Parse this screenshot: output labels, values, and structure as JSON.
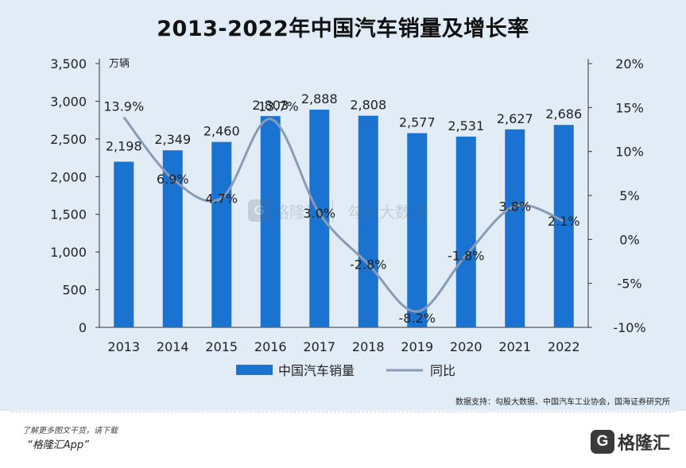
{
  "chart_data": {
    "type": "bar",
    "title": "2013-2022年中国汽车销量及增长率",
    "categories": [
      "2013",
      "2014",
      "2015",
      "2016",
      "2017",
      "2018",
      "2019",
      "2020",
      "2021",
      "2022"
    ],
    "series": [
      {
        "name": "中国汽车销量",
        "type": "bar",
        "axis": "left",
        "color": "#1a73d1",
        "values": [
          2198,
          2349,
          2460,
          2803,
          2888,
          2808,
          2577,
          2531,
          2627,
          2686
        ],
        "labels": [
          "2,198",
          "2,349",
          "2,460",
          "2,803",
          "2,888",
          "2,808",
          "2,577",
          "2,531",
          "2,627",
          "2,686"
        ]
      },
      {
        "name": "同比",
        "type": "line",
        "axis": "right",
        "color": "#8a9bb5",
        "values": [
          13.9,
          6.9,
          4.7,
          13.7,
          3.0,
          -2.8,
          -8.2,
          -1.8,
          3.8,
          2.1
        ],
        "labels": [
          "13.9%",
          "6.9%",
          "4.7%",
          "13.7%",
          "3.0%",
          "-2.8%",
          "-8.2%",
          "-1.8%",
          "3.8%",
          "2.1%"
        ]
      }
    ],
    "y_left": {
      "unit": "万辆",
      "ylim": [
        0,
        3500
      ],
      "ticks": [
        0,
        500,
        1000,
        1500,
        2000,
        2500,
        3000,
        3500
      ],
      "tick_labels": [
        "0",
        "500",
        "1,000",
        "1,500",
        "2,000",
        "2,500",
        "3,000",
        "3,500"
      ]
    },
    "y_right": {
      "ylim": [
        -10,
        20
      ],
      "ticks": [
        -10,
        -5,
        0,
        5,
        10,
        15,
        20
      ],
      "tick_labels": [
        "-10%",
        "-5%",
        "0%",
        "5%",
        "10%",
        "15%",
        "20%"
      ]
    },
    "legend": {
      "position": "bottom",
      "items": [
        "中国汽车销量",
        "同比"
      ]
    },
    "grid": false
  },
  "source": "数据支持：勾股大数据、中国汽车工业协会，国海证券研究所",
  "watermark": {
    "brand": "格隆汇",
    "text": "勾股大数据"
  },
  "footer": {
    "line1": "了解更多图文干货，请下载",
    "line2": "“格隆汇App”",
    "logo_text": "格隆汇",
    "logo_mark": "G"
  }
}
